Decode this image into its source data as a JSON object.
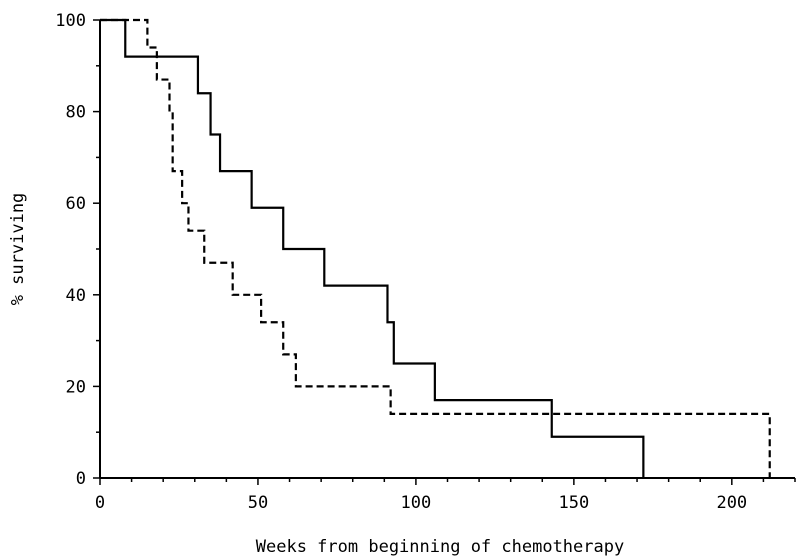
{
  "chart_data": {
    "type": "line",
    "title": "",
    "xlabel": "Weeks from beginning of chemotherapy",
    "ylabel": "% surviving",
    "xlim": [
      0,
      220
    ],
    "ylim": [
      0,
      100
    ],
    "x_ticks": [
      0,
      50,
      100,
      150,
      200
    ],
    "x_tick_labels": [
      "0",
      "50",
      "100",
      "150",
      "200"
    ],
    "y_ticks": [
      0,
      20,
      40,
      60,
      80,
      100
    ],
    "y_tick_labels": [
      "0",
      "20",
      "40",
      "60",
      "80",
      "100"
    ],
    "grid": false,
    "legend": "none",
    "series": [
      {
        "style": "solid",
        "color": "#000000",
        "steps": [
          [
            0,
            100
          ],
          [
            8,
            92
          ],
          [
            31,
            84
          ],
          [
            35,
            75
          ],
          [
            38,
            67
          ],
          [
            48,
            59
          ],
          [
            58,
            50
          ],
          [
            71,
            42
          ],
          [
            91,
            34
          ],
          [
            93,
            25
          ],
          [
            106,
            17
          ],
          [
            143,
            9
          ],
          [
            172,
            0
          ]
        ]
      },
      {
        "style": "dashed",
        "color": "#000000",
        "steps": [
          [
            0,
            100
          ],
          [
            15,
            94
          ],
          [
            18,
            87
          ],
          [
            22,
            80
          ],
          [
            23,
            67
          ],
          [
            26,
            60
          ],
          [
            28,
            54
          ],
          [
            33,
            47
          ],
          [
            42,
            40
          ],
          [
            51,
            34
          ],
          [
            58,
            27
          ],
          [
            62,
            20
          ],
          [
            92,
            14
          ],
          [
            212,
            0
          ]
        ]
      }
    ]
  }
}
